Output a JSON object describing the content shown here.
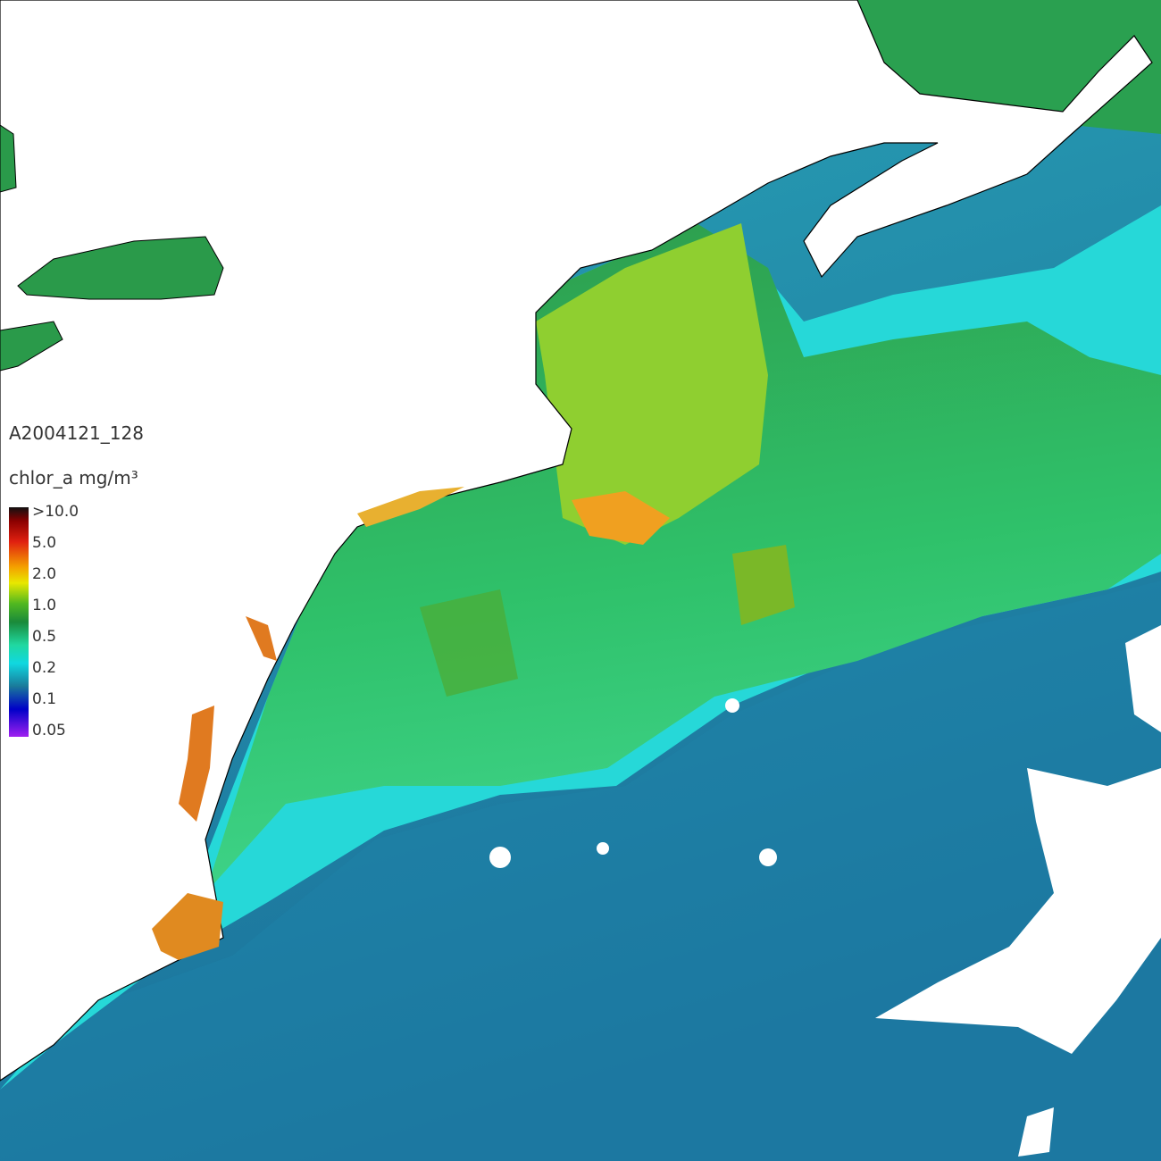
{
  "map": {
    "title": "A2004121_128",
    "units": "chlor_a mg/m³",
    "legend": {
      "labels": [
        ">10.0",
        "5.0",
        "2.0",
        "1.0",
        "0.5",
        "0.2",
        "0.1",
        "0.05"
      ]
    }
  }
}
